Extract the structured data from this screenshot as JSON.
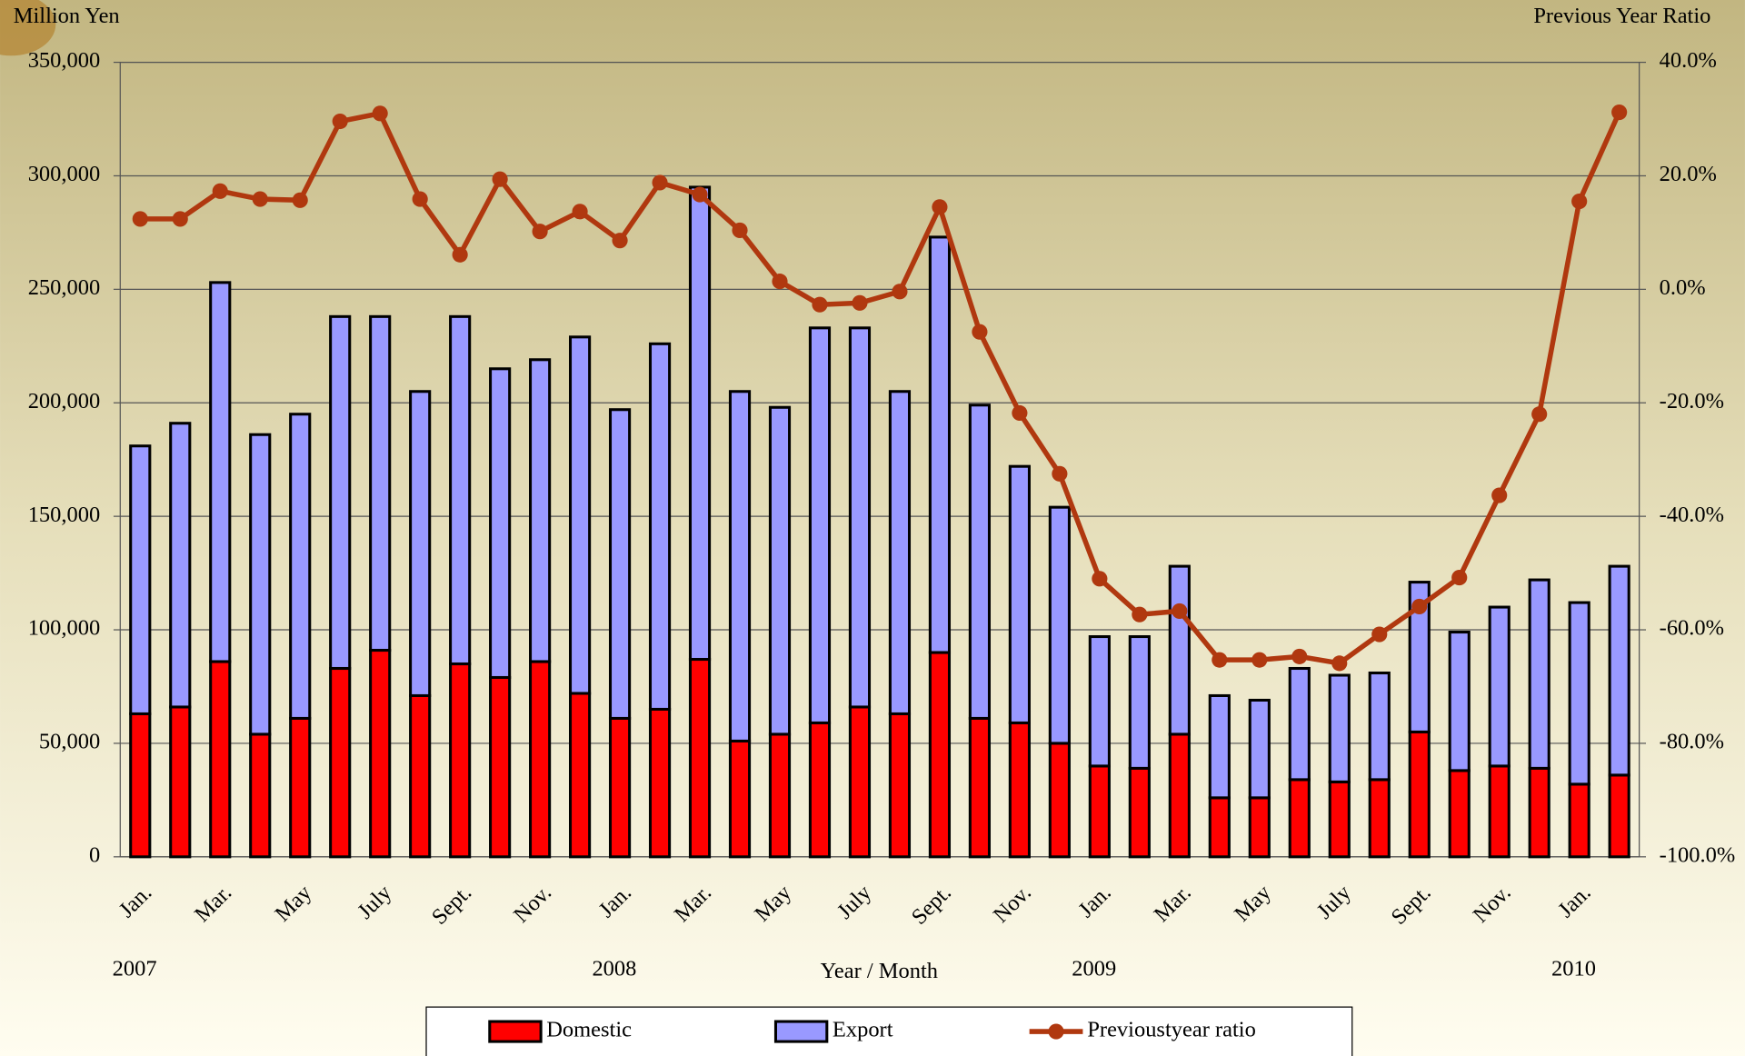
{
  "chart_data": {
    "type": "bar",
    "y_label": "Million Yen",
    "y2_label": "Previous Year Ratio",
    "x_label": "Year / Month",
    "year_labels": [
      "2007",
      "2008",
      "2009",
      "2010"
    ],
    "categories": [
      "Jan.",
      null,
      "Mar.",
      null,
      "May",
      null,
      "July",
      null,
      "Sept.",
      null,
      "Nov.",
      null,
      "Jan.",
      null,
      "Mar.",
      null,
      "May",
      null,
      "July",
      null,
      "Sept.",
      null,
      "Nov.",
      null,
      "Jan.",
      null,
      "Mar.",
      null,
      "May",
      null,
      "July",
      null,
      "Sept.",
      null,
      "Nov.",
      null,
      "Jan.",
      null
    ],
    "stacked": true,
    "series": [
      {
        "name": "Domestic",
        "color": "#ff0000",
        "values": [
          63000,
          66000,
          86000,
          54000,
          61000,
          83000,
          91000,
          71000,
          85000,
          79000,
          86000,
          72000,
          61000,
          65000,
          87000,
          51000,
          54000,
          59000,
          66000,
          63000,
          90000,
          61000,
          59000,
          50000,
          40000,
          39000,
          54000,
          26000,
          26000,
          34000,
          33000,
          34000,
          55000,
          38000,
          40000,
          39000,
          32000,
          36000
        ]
      },
      {
        "name": "Export",
        "color": "#9999ff",
        "values": [
          118000,
          125000,
          167000,
          132000,
          134000,
          155000,
          147000,
          134000,
          153000,
          136000,
          133000,
          157000,
          136000,
          161000,
          208000,
          154000,
          144000,
          174000,
          167000,
          142000,
          183000,
          138000,
          113000,
          104000,
          57000,
          58000,
          74000,
          45000,
          43000,
          49000,
          47000,
          47000,
          66000,
          61000,
          70000,
          83000,
          80000,
          92000
        ]
      },
      {
        "name": "Previoustyear ratio",
        "type": "line",
        "axis": "y2",
        "color": "#b0380f",
        "values": [
          12.4,
          12.4,
          17.3,
          15.9,
          15.7,
          29.6,
          31.0,
          15.9,
          6.1,
          19.4,
          10.2,
          13.7,
          8.6,
          18.8,
          16.7,
          10.4,
          1.4,
          -2.7,
          -2.4,
          -0.4,
          14.5,
          -7.5,
          -21.8,
          -32.5,
          -51.0,
          -57.3,
          -56.7,
          -65.3,
          -65.3,
          -64.7,
          -65.9,
          -60.8,
          -55.9,
          -50.8,
          -36.3,
          -22.0,
          15.5,
          31.2
        ]
      }
    ],
    "ylim": [
      0,
      350000
    ],
    "yticks": [
      0,
      {
        "value": 50000,
        "label": "50,000"
      },
      {
        "value": 100000,
        "label": "100,000"
      },
      {
        "value": 150000,
        "label": "150,000"
      },
      {
        "value": 200000,
        "label": "200,000"
      },
      {
        "value": 250000,
        "label": "250,000"
      },
      {
        "value": 300000,
        "label": "300,000"
      },
      {
        "value": 350000,
        "label": "350,000"
      }
    ],
    "y2lim": [
      -100,
      40
    ],
    "y2ticks": [
      {
        "value": -100,
        "label": "-100.0%"
      },
      {
        "value": -80,
        "label": "-80.0%"
      },
      {
        "value": -60,
        "label": "-60.0%"
      },
      {
        "value": -40,
        "label": "-40.0%"
      },
      {
        "value": -20,
        "label": "-20.0%"
      },
      {
        "value": 0,
        "label": "0.0%"
      },
      {
        "value": 20,
        "label": "20.0%"
      },
      {
        "value": 40,
        "label": "40.0%"
      }
    ],
    "grid": true
  }
}
